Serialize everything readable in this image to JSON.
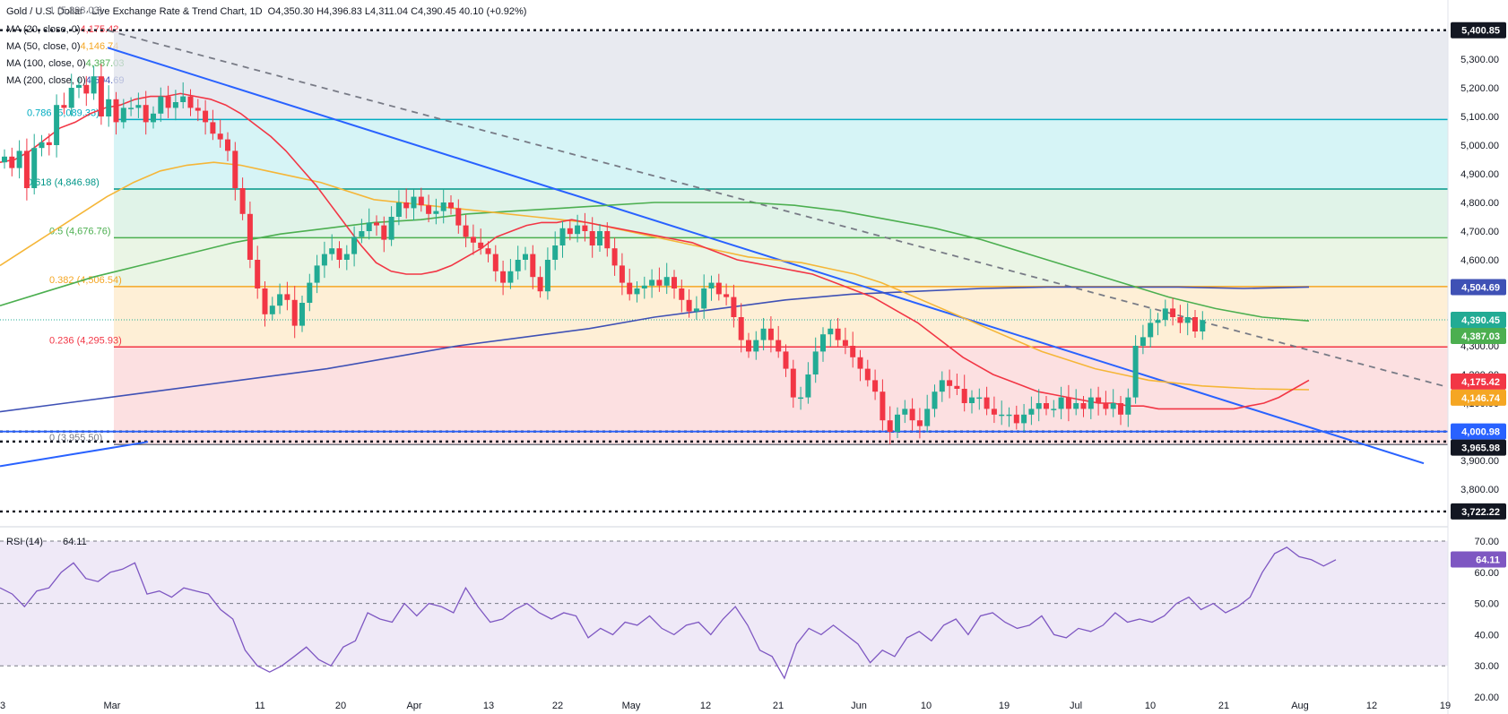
{
  "header": {
    "title": "Gold / U.S. Dollar · Live Exchange Rate & Trend Chart, 1D",
    "ohlc": "O4,350.30  H4,396.83  L4,311.04  C4,390.45  40.10 (+0.92%)",
    "ma_lines": [
      {
        "label": "MA (20, close, 0)",
        "value": "4,175.42",
        "color": "#f23645"
      },
      {
        "label": "MA (50, close, 0)",
        "value": "4,146.74",
        "color": "#f5a623"
      },
      {
        "label": "MA (100, close, 0)",
        "value": "4,387.03",
        "color": "#4caf50"
      },
      {
        "label": "MA (200, close, 0)",
        "value": "4,504.69",
        "color": "#3f51b5"
      }
    ]
  },
  "colors": {
    "up": "#22ab94",
    "down": "#f23645",
    "ma20": "#f23645",
    "ma50": "#f5b638",
    "ma100": "#4caf50",
    "ma200": "#3f51b5",
    "trend": "#2962ff",
    "rsi": "#7e57c2"
  },
  "chart_data": [
    {
      "type": "candlestick",
      "title": "Gold / U.S. Dollar · Live Exchange Rate & Trend Chart, 1D",
      "ylim": [
        3700,
        5450
      ],
      "y_ticks": [
        "5,400.00",
        "5,300.00",
        "5,200.00",
        "5,100.00",
        "5,000.00",
        "4,900.00",
        "4,800.00",
        "4,700.00",
        "4,600.00",
        "4,500.00",
        "4,400.00",
        "4,300.00",
        "4,200.00",
        "4,100.00",
        "4,000.00",
        "3,900.00",
        "3,800.00"
      ],
      "x_ticks": [
        "3",
        "Mar",
        "11",
        "20",
        "Apr",
        "13",
        "22",
        "May",
        "12",
        "21",
        "Jun",
        "10",
        "19",
        "Jul",
        "10",
        "21",
        "Aug",
        "12",
        "19"
      ],
      "close": [
        4960,
        4920,
        4980,
        4850,
        4990,
        5010,
        5000,
        5140,
        5130,
        5200,
        5210,
        5180,
        5240,
        5100,
        5160,
        5080,
        5130,
        5130,
        5140,
        5080,
        5110,
        5170,
        5130,
        5150,
        5170,
        5130,
        5120,
        5080,
        5040,
        5020,
        4980,
        4850,
        4760,
        4600,
        4500,
        4410,
        4440,
        4480,
        4460,
        4370,
        4450,
        4520,
        4580,
        4620,
        4640,
        4600,
        4620,
        4680,
        4700,
        4730,
        4720,
        4670,
        4750,
        4800,
        4780,
        4820,
        4790,
        4760,
        4770,
        4800,
        4780,
        4720,
        4680,
        4660,
        4640,
        4620,
        4560,
        4520,
        4560,
        4600,
        4620,
        4540,
        4490,
        4600,
        4650,
        4710,
        4690,
        4720,
        4700,
        4650,
        4700,
        4640,
        4580,
        4520,
        4480,
        4500,
        4510,
        4530,
        4510,
        4540,
        4500,
        4460,
        4420,
        4430,
        4500,
        4520,
        4480,
        4470,
        4400,
        4320,
        4280,
        4320,
        4360,
        4320,
        4280,
        4220,
        4120,
        4120,
        4200,
        4280,
        4340,
        4360,
        4320,
        4300,
        4260,
        4220,
        4180,
        4140,
        4040,
        4000,
        4060,
        4080,
        4040,
        4020,
        4080,
        4140,
        4180,
        4160,
        4150,
        4100,
        4120,
        4120,
        4080,
        4060,
        4060,
        4060,
        4030,
        4060,
        4080,
        4100,
        4080,
        4080,
        4120,
        4080,
        4100,
        4080,
        4120,
        4100,
        4080,
        4100,
        4060,
        4120,
        4300,
        4330,
        4380,
        4390,
        4430,
        4400,
        4380,
        4400,
        4350,
        4390
      ],
      "ma20": [
        4940,
        4950,
        4980,
        5020,
        5060,
        5080,
        5110,
        5130,
        5140,
        5160,
        5170,
        5170,
        5180,
        5170,
        5160,
        5140,
        5110,
        5070,
        5030,
        4980,
        4920,
        4860,
        4790,
        4720,
        4650,
        4590,
        4560,
        4550,
        4550,
        4560,
        4580,
        4610,
        4640,
        4680,
        4700,
        4720,
        4730,
        4730,
        4740,
        4730,
        4720,
        4710,
        4700,
        4690,
        4680,
        4670,
        4660,
        4640,
        4620,
        4600,
        4590,
        4580,
        4570,
        4560,
        4550,
        4530,
        4510,
        4490,
        4470,
        4440,
        4410,
        4380,
        4340,
        4300,
        4260,
        4230,
        4200,
        4180,
        4160,
        4140,
        4130,
        4120,
        4110,
        4100,
        4100,
        4090,
        4090,
        4080,
        4080,
        4080,
        4080,
        4080,
        4080,
        4090,
        4100,
        4120,
        4150,
        4180
      ],
      "ma50": [
        4580,
        4640,
        4700,
        4760,
        4820,
        4870,
        4910,
        4930,
        4940,
        4930,
        4910,
        4890,
        4870,
        4840,
        4810,
        4800,
        4790,
        4780,
        4770,
        4760,
        4750,
        4740,
        4730,
        4710,
        4690,
        4670,
        4650,
        4630,
        4610,
        4600,
        4590,
        4570,
        4550,
        4520,
        4480,
        4440,
        4400,
        4360,
        4320,
        4280,
        4250,
        4220,
        4200,
        4180,
        4170,
        4160,
        4155,
        4150,
        4148,
        4147
      ],
      "ma100": [
        4440,
        4490,
        4540,
        4580,
        4620,
        4660,
        4690,
        4710,
        4730,
        4740,
        4760,
        4770,
        4780,
        4790,
        4800,
        4800,
        4800,
        4790,
        4770,
        4740,
        4710,
        4670,
        4620,
        4570,
        4520,
        4470,
        4430,
        4400,
        4387
      ],
      "ma200": [
        4070,
        4100,
        4130,
        4160,
        4190,
        4220,
        4260,
        4300,
        4330,
        4360,
        4400,
        4430,
        4460,
        4480,
        4490,
        4500,
        4505,
        4505,
        4505,
        4500,
        4505
      ],
      "fib_levels": [
        {
          "label": "0.786 (5,089.33)",
          "value": 5089.33,
          "color": "#00acc1"
        },
        {
          "label": "0.618 (4,846.98)",
          "value": 4846.98,
          "color": "#009688"
        },
        {
          "label": "0.5 (4,676.76)",
          "value": 4676.76,
          "color": "#4caf50"
        },
        {
          "label": "0.382 (4,506.54)",
          "value": 4506.54,
          "color": "#f5a623"
        },
        {
          "label": "0.236 (4,295.93)",
          "value": 4295.93,
          "color": "#f23645"
        },
        {
          "label": "0 (3,955.50)",
          "value": 3955.5,
          "color": "#787b86"
        }
      ],
      "fib_top_label": "1 (5,398.03)",
      "horizontal_levels": [
        5400.85,
        4000.98,
        3965.98,
        3722.22
      ],
      "price_badges": [
        {
          "text": "5,400.85",
          "value": 5400.85,
          "color": "#131722"
        },
        {
          "text": "4,504.69",
          "value": 4504.69,
          "color": "#3f51b5"
        },
        {
          "text": "4,390.45",
          "value": 4390.45,
          "color": "#22ab94"
        },
        {
          "text": "4,387.03",
          "value": 4387.03,
          "color": "#4caf50"
        },
        {
          "text": "4,175.42",
          "value": 4175.42,
          "color": "#f23645"
        },
        {
          "text": "4,146.74",
          "value": 4146.74,
          "color": "#f5a623"
        },
        {
          "text": "4,000.98",
          "value": 4000.98,
          "color": "#2962ff"
        },
        {
          "text": "3,965.98",
          "value": 3965.98,
          "color": "#131722"
        },
        {
          "text": "3,722.22",
          "value": 3722.22,
          "color": "#131722"
        }
      ]
    },
    {
      "type": "line",
      "title": "RSI (14)",
      "current": "64.11",
      "ylim": [
        20,
        72
      ],
      "y_ticks": [
        "70.00",
        "60.00",
        "50.00",
        "40.00",
        "30.00",
        "20.00"
      ],
      "bands": [
        70,
        50,
        30
      ],
      "values": [
        55,
        53,
        49,
        54,
        55,
        60,
        63,
        58,
        57,
        60,
        61,
        63,
        53,
        54,
        52,
        55,
        54,
        53,
        48,
        45,
        35,
        30,
        28,
        30,
        33,
        36,
        32,
        30,
        36,
        38,
        47,
        45,
        44,
        50,
        46,
        50,
        49,
        47,
        55,
        49,
        44,
        45,
        48,
        50,
        47,
        45,
        47,
        46,
        39,
        42,
        40,
        44,
        43,
        46,
        42,
        40,
        43,
        44,
        40,
        45,
        49,
        43,
        35,
        33,
        26,
        37,
        42,
        40,
        43,
        40,
        37,
        31,
        35,
        33,
        39,
        41,
        38,
        43,
        45,
        40,
        46,
        47,
        44,
        42,
        43,
        46,
        40,
        39,
        42,
        41,
        43,
        47,
        44,
        45,
        44,
        46,
        50,
        52,
        48,
        50,
        47,
        49,
        52,
        60,
        66,
        68,
        65,
        64,
        62,
        64
      ]
    }
  ]
}
